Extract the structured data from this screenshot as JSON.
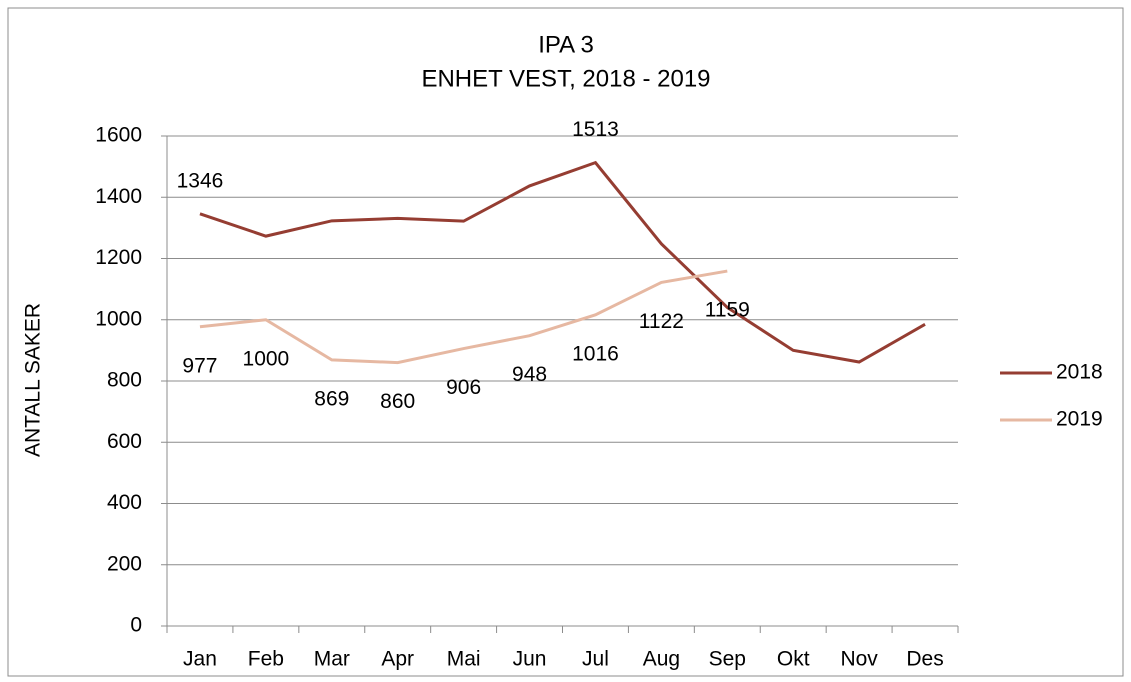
{
  "chart_data": {
    "type": "line",
    "title": "IPA 3",
    "subtitle": "ENHET VEST, 2018 - 2019",
    "y_label": "ANTALL SAKER",
    "categories": [
      "Jan",
      "Feb",
      "Mar",
      "Apr",
      "Mai",
      "Jun",
      "Jul",
      "Aug",
      "Sep",
      "Okt",
      "Nov",
      "Des"
    ],
    "series": [
      {
        "name": "2018",
        "color": "#953d32",
        "values": [
          1346,
          1273,
          1323,
          1331,
          1322,
          1437,
          1513,
          1248,
          1040,
          900,
          862,
          985
        ],
        "value_labels": [
          "1346",
          null,
          null,
          null,
          null,
          null,
          "1513",
          null,
          null,
          null,
          null,
          null
        ]
      },
      {
        "name": "2019",
        "color": "#e6b8a2",
        "values": [
          977,
          1000,
          869,
          860,
          906,
          948,
          1016,
          1122,
          1159,
          null,
          null,
          null
        ],
        "value_labels": [
          "977",
          "1000",
          "869",
          "860",
          "906",
          "948",
          "1016",
          "1122",
          "1159",
          null,
          null,
          null
        ]
      }
    ],
    "ylim": [
      0,
      1600
    ],
    "yticks": [
      0,
      200,
      400,
      600,
      800,
      1000,
      1200,
      1400,
      1600
    ],
    "grid": true,
    "legend": "right"
  }
}
